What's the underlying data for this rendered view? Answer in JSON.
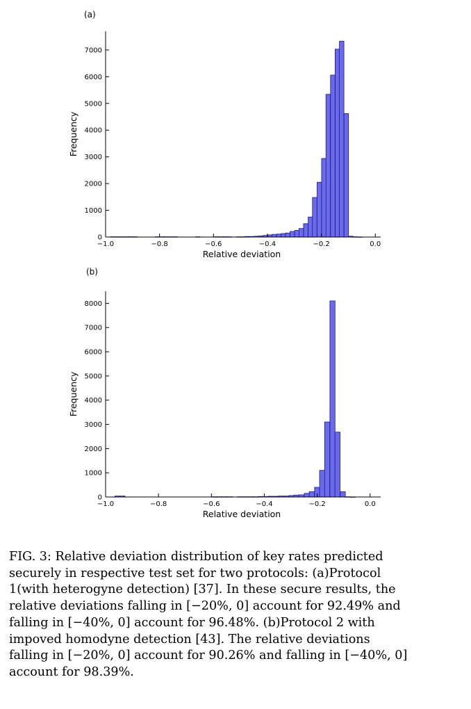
{
  "panels": [
    {
      "label": "(a)"
    },
    {
      "label": "(b)"
    }
  ],
  "chart_data": [
    {
      "type": "bar",
      "panel": "(a)",
      "xlabel": "Relative deviation",
      "ylabel": "Frequency",
      "xlim": [
        -1.0,
        0.02
      ],
      "ylim": [
        0,
        7700
      ],
      "xticks": [
        -1.0,
        -0.8,
        -0.6,
        -0.4,
        -0.2,
        0.0
      ],
      "xtick_labels": [
        "−1.0",
        "−0.8",
        "−0.6",
        "−0.4",
        "−0.2",
        "0.0"
      ],
      "yticks": [
        0,
        1000,
        2000,
        3000,
        4000,
        5000,
        6000,
        7000
      ],
      "ytick_labels": [
        "0",
        "1000",
        "2000",
        "3000",
        "4000",
        "5000",
        "6000",
        "7000"
      ],
      "bin_width": 0.0167,
      "bin_starts": [
        -0.983,
        -0.966,
        -0.949,
        -0.933,
        -0.916,
        -0.899,
        -0.816,
        -0.799,
        -0.783,
        -0.766,
        -0.749,
        -0.666,
        -0.599,
        -0.583,
        -0.566,
        -0.549,
        -0.516,
        -0.499,
        -0.483,
        -0.466,
        -0.449,
        -0.433,
        -0.416,
        -0.399,
        -0.383,
        -0.366,
        -0.349,
        -0.333,
        -0.316,
        -0.299,
        -0.283,
        -0.266,
        -0.249,
        -0.233,
        -0.216,
        -0.199,
        -0.183,
        -0.166,
        -0.149,
        -0.133,
        -0.116,
        -0.099,
        -0.083,
        -0.066
      ],
      "values": [
        10,
        10,
        10,
        10,
        10,
        10,
        10,
        10,
        10,
        10,
        10,
        10,
        10,
        10,
        10,
        10,
        10,
        10,
        20,
        20,
        30,
        40,
        60,
        80,
        100,
        110,
        130,
        150,
        210,
        250,
        320,
        500,
        750,
        1480,
        2050,
        2940,
        5340,
        6060,
        7030,
        7330,
        4620,
        30,
        10,
        5
      ],
      "bar_color": "#6a6aea",
      "edge_color": "#1a1a8a"
    },
    {
      "type": "bar",
      "panel": "(b)",
      "xlabel": "Relative deviation",
      "ylabel": "Frequency",
      "xlim": [
        -1.0,
        0.04
      ],
      "ylim": [
        0,
        8500
      ],
      "xticks": [
        -1.0,
        -0.8,
        -0.6,
        -0.4,
        -0.2,
        0.0
      ],
      "xtick_labels": [
        "−1.0",
        "−0.8",
        "−0.6",
        "−0.4",
        "−0.2",
        "0.0"
      ],
      "yticks": [
        0,
        1000,
        2000,
        3000,
        4000,
        5000,
        6000,
        7000,
        8000
      ],
      "ytick_labels": [
        "0",
        "1000",
        "2000",
        "3000",
        "4000",
        "5000",
        "6000",
        "7000",
        "8000"
      ],
      "bin_width": 0.0194,
      "bin_starts": [
        -0.965,
        -0.946,
        -0.598,
        -0.579,
        -0.559,
        -0.54,
        -0.501,
        -0.482,
        -0.462,
        -0.443,
        -0.424,
        -0.404,
        -0.385,
        -0.366,
        -0.346,
        -0.327,
        -0.307,
        -0.288,
        -0.269,
        -0.249,
        -0.23,
        -0.21,
        -0.191,
        -0.172,
        -0.152,
        -0.133,
        -0.113,
        -0.094,
        -0.075
      ],
      "values": [
        40,
        40,
        10,
        10,
        10,
        10,
        10,
        10,
        10,
        10,
        20,
        20,
        30,
        30,
        40,
        40,
        60,
        80,
        90,
        150,
        220,
        400,
        1100,
        3100,
        8100,
        2680,
        220,
        10,
        5
      ],
      "bar_color": "#6a6aea",
      "edge_color": "#1a1a8a"
    }
  ],
  "caption": {
    "lines": [
      "FIG. 3: Relative deviation distribution of key rates predicted",
      "securely in respective test set for two protocols: (a)Protocol",
      "1(with heterogyne detection) [37]. In these secure results, the",
      "relative deviations falling in [−20%, 0] account for 92.49% and",
      "falling in [−40%, 0] account for 96.48%.  (b)Protocol 2 with",
      "impoved homodyne detection [43].  The relative deviations",
      "falling in [−20%, 0] account for 90.26% and falling in [−40%, 0]",
      "account for 98.39%."
    ]
  }
}
